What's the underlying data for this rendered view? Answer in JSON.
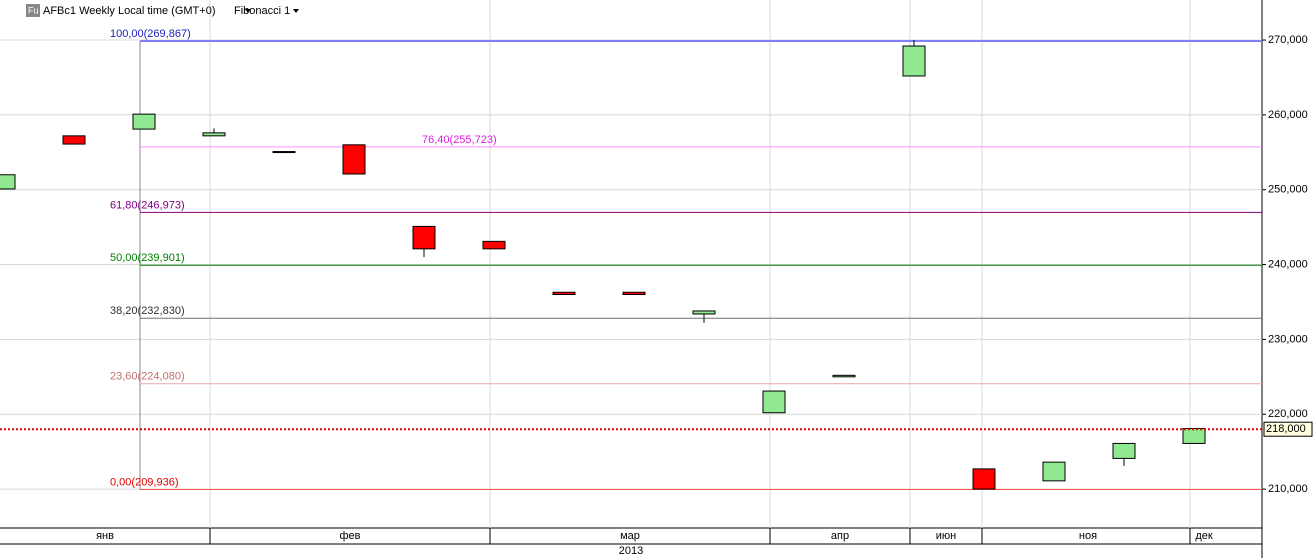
{
  "chart_data": {
    "type": "candlestick",
    "title": "AFBc1 Weekly Local time (GMT+0)",
    "study": "Fibonacci 1",
    "badge": "Fu",
    "categories": [
      null,
      null,
      null,
      null,
      null,
      null,
      null,
      null,
      null,
      null,
      null,
      null,
      null,
      null,
      null,
      null,
      null,
      null
    ],
    "open": [
      250100,
      257200,
      258100,
      257200,
      255100,
      256000,
      245100,
      243100,
      236300,
      236300,
      233400,
      220200,
      225000,
      265200,
      212700,
      211100,
      214100,
      216100
    ],
    "high": [
      252000,
      257200,
      260100,
      258200,
      255100,
      256000,
      245100,
      243100,
      236300,
      236300,
      233800,
      223100,
      225200,
      270000,
      212700,
      213600,
      216100,
      218100
    ],
    "low": [
      250100,
      256100,
      258100,
      257200,
      255000,
      252100,
      241000,
      242100,
      236000,
      236000,
      232200,
      220200,
      225000,
      265200,
      210000,
      211100,
      213100,
      216100
    ],
    "close": [
      252000,
      256100,
      260100,
      257600,
      255000,
      252100,
      242100,
      242100,
      236000,
      236000,
      233800,
      223100,
      225200,
      269200,
      210000,
      213600,
      216100,
      218100
    ],
    "up_color": "#90e890",
    "down_color": "#ff0000",
    "month_labels": [
      "янв",
      "фев",
      "мар",
      "апр",
      "июн",
      "ноя",
      "дек"
    ],
    "year_label": "2013",
    "ylim": [
      204800,
      275350
    ],
    "yticks": [
      {
        "value": 210000,
        "label": "210,000"
      },
      {
        "value": 220000,
        "label": "220,000"
      },
      {
        "value": 230000,
        "label": "230,000"
      },
      {
        "value": 240000,
        "label": "240,000"
      },
      {
        "value": 250000,
        "label": "250,000"
      },
      {
        "value": 260000,
        "label": "260,000"
      },
      {
        "value": 270000,
        "label": "270,000"
      }
    ],
    "grid": true,
    "fib_levels": [
      {
        "label": "100,00(269,867)",
        "value": 269867,
        "color": "#8080ff",
        "text_color": "#2020c0"
      },
      {
        "label": "76,40(255,723)",
        "value": 255723,
        "color": "#ff90ff",
        "text_color": "#e020e0"
      },
      {
        "label": "61,80(246,973)",
        "value": 246973,
        "color": "#800080",
        "text_color": "#800080"
      },
      {
        "label": "50,00(239,901)",
        "value": 239901,
        "color": "#008000",
        "text_color": "#008000"
      },
      {
        "label": "38,20(232,830)",
        "value": 232830,
        "color": "#707070",
        "text_color": "#303030"
      },
      {
        "label": "23,60(224,080)",
        "value": 224080,
        "color": "#e8a8a8",
        "text_color": "#c07070"
      },
      {
        "label": "0,00(209,936)",
        "value": 209936,
        "color": "#ff5050",
        "text_color": "#e00000"
      }
    ],
    "current_price": {
      "value": 218000,
      "label": "218,000",
      "color": "#e00000"
    }
  }
}
